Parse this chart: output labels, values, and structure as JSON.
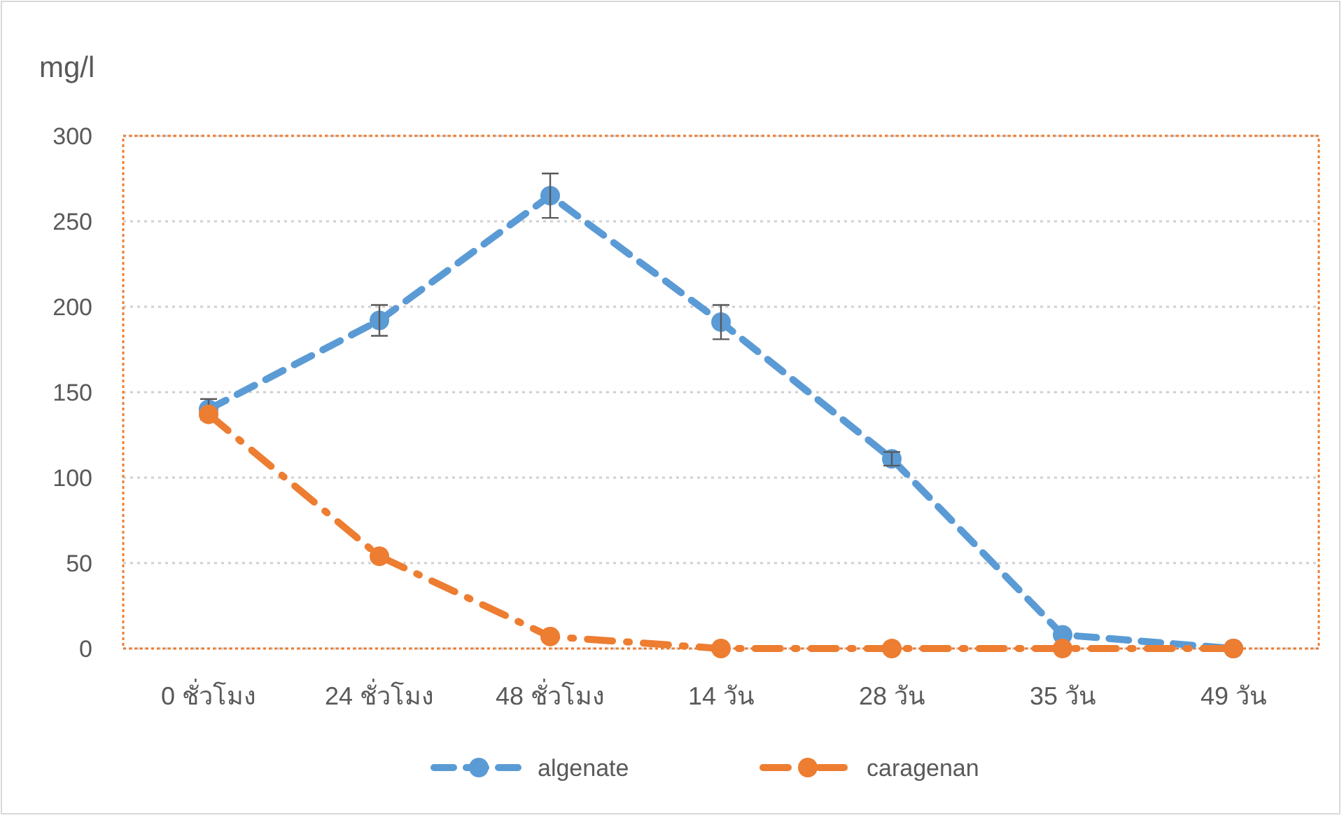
{
  "chart_data": {
    "type": "line",
    "ylabel": "mg/l",
    "categories": [
      "0 ชั่วโมง",
      "24 ชั่วโมง",
      "48 ชั่วโมง",
      "14 วัน",
      "28 วัน",
      "35 วัน",
      "49 วัน"
    ],
    "series": [
      {
        "name": "algenate",
        "color": "#5b9bd5",
        "line_style": "dashed",
        "values": [
          140,
          192,
          265,
          191,
          111,
          8,
          0
        ],
        "errors": [
          6,
          9,
          13,
          10,
          4,
          null,
          null
        ]
      },
      {
        "name": "caragenan",
        "color": "#ed7d31",
        "line_style": "dashdot",
        "values": [
          137,
          54,
          7,
          0,
          0,
          0,
          0
        ]
      }
    ],
    "ylim": [
      0,
      300
    ],
    "yticks": [
      0,
      50,
      100,
      150,
      200,
      250,
      300
    ],
    "grid": "y",
    "legend": "bottom",
    "marker": "circle"
  }
}
